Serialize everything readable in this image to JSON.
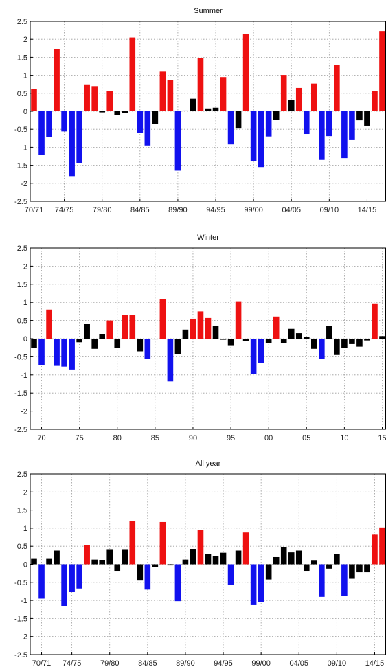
{
  "colors": {
    "positive": "#ee1111",
    "negative": "#1111ee",
    "neutral": "#000000"
  },
  "chart_data": [
    {
      "type": "bar",
      "title": "Summer",
      "ylim": [
        -2.5,
        2.5
      ],
      "yticks": [
        "2.5",
        "2",
        "1.5",
        "1",
        "0.5",
        "0",
        "-0.5",
        "-1",
        "-1.5",
        "-2",
        "-2.5"
      ],
      "grid": true,
      "x_start": 1970,
      "x_end": 2015,
      "xtick_years": [
        1970,
        1974,
        1979,
        1984,
        1989,
        1994,
        1999,
        2004,
        2009,
        2014
      ],
      "xticks": [
        "70/71",
        "74/75",
        "79/80",
        "84/85",
        "89/90",
        "94/95",
        "99/00",
        "04/05",
        "09/10",
        "14/15"
      ],
      "values": [
        0.62,
        -1.22,
        -0.72,
        1.73,
        -0.56,
        -1.8,
        -1.45,
        0.73,
        0.7,
        -0.03,
        0.57,
        -0.1,
        -0.04,
        2.05,
        -0.6,
        -0.95,
        -0.35,
        1.1,
        0.87,
        -1.65,
        0.02,
        0.35,
        1.47,
        0.08,
        0.1,
        0.95,
        -0.92,
        -0.48,
        2.15,
        -1.38,
        -1.55,
        -0.7,
        -0.23,
        1.01,
        0.32,
        0.65,
        -0.63,
        0.77,
        -1.35,
        -0.69,
        1.28,
        -1.3,
        -0.8,
        -0.25,
        -0.4,
        0.57,
        2.23
      ]
    },
    {
      "type": "bar",
      "title": "Winter",
      "ylim": [
        -2.5,
        2.5
      ],
      "yticks": [
        "2.5",
        "2",
        "1.5",
        "1",
        "0.5",
        "0",
        "-0.5",
        "-1",
        "-1.5",
        "-2",
        "-2.5"
      ],
      "grid": true,
      "x_start": 1969,
      "x_end": 2015,
      "xtick_years": [
        1970,
        1975,
        1980,
        1985,
        1990,
        1995,
        2000,
        2005,
        2010,
        2015
      ],
      "xticks": [
        "70",
        "75",
        "80",
        "85",
        "90",
        "95",
        "00",
        "05",
        "10",
        "15"
      ],
      "values": [
        -0.25,
        -0.73,
        0.8,
        -0.75,
        -0.77,
        -0.85,
        -0.1,
        0.4,
        -0.28,
        0.12,
        0.5,
        -0.25,
        0.66,
        0.65,
        -0.35,
        -0.55,
        -0.02,
        1.08,
        -1.18,
        -0.42,
        0.25,
        0.55,
        0.75,
        0.57,
        0.36,
        -0.03,
        -0.2,
        1.03,
        -0.07,
        -0.97,
        -0.67,
        -0.12,
        0.61,
        -0.12,
        0.27,
        0.15,
        0.05,
        -0.28,
        -0.55,
        0.35,
        -0.45,
        -0.25,
        -0.15,
        -0.22,
        -0.05,
        0.97,
        0.07
      ]
    },
    {
      "type": "bar",
      "title": "All year",
      "ylim": [
        -2.5,
        2.5
      ],
      "yticks": [
        "2.5",
        "2",
        "1.5",
        "1",
        "0.5",
        "0",
        "-0.5",
        "-1",
        "-1.5",
        "-2",
        "-2.5"
      ],
      "grid": true,
      "x_start": 1969,
      "x_end": 2015,
      "xtick_years": [
        1970,
        1974,
        1979,
        1984,
        1989,
        1994,
        1999,
        2004,
        2009,
        2014
      ],
      "xticks": [
        "70/71",
        "74/75",
        "79/80",
        "84/85",
        "89/90",
        "94/95",
        "99/00",
        "04/05",
        "09/10",
        "14/15"
      ],
      "values": [
        0.15,
        -0.95,
        0.15,
        0.38,
        -1.15,
        -0.77,
        -0.67,
        0.53,
        0.13,
        0.12,
        0.4,
        -0.2,
        0.4,
        1.2,
        -0.45,
        -0.7,
        -0.08,
        1.17,
        -0.03,
        -1.02,
        0.13,
        0.42,
        0.95,
        0.28,
        0.23,
        0.32,
        -0.57,
        0.38,
        0.88,
        -1.13,
        -1.05,
        -0.42,
        0.2,
        0.47,
        0.33,
        0.38,
        -0.2,
        0.1,
        -0.9,
        -0.12,
        0.28,
        -0.87,
        -0.4,
        -0.22,
        -0.22,
        0.82,
        1.02
      ]
    }
  ]
}
